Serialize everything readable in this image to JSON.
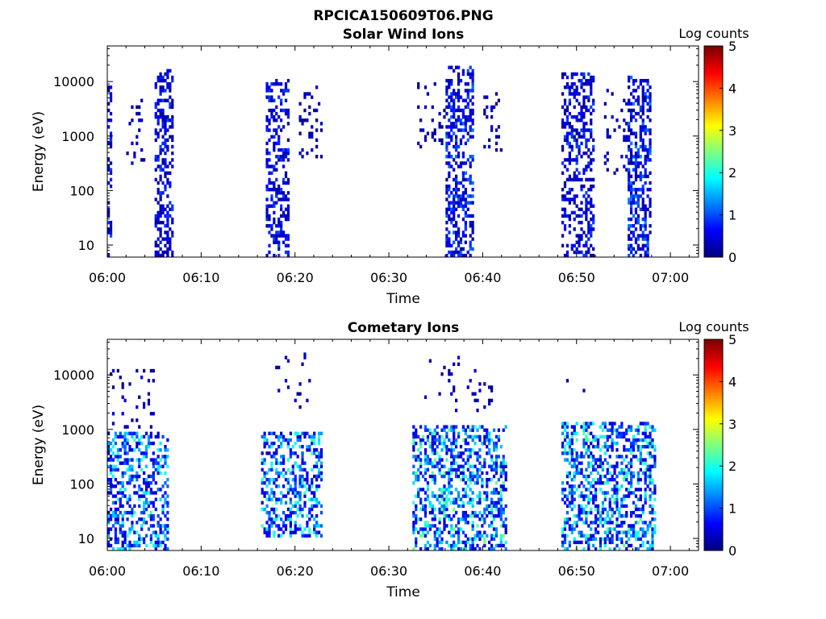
{
  "figure": {
    "title": "RPCICA150609T06.PNG"
  },
  "colors": {
    "colormap": [
      "#00007f",
      "#0000ff",
      "#007fff",
      "#00ffff",
      "#7fff7f",
      "#ffff00",
      "#ff7f00",
      "#ff0000",
      "#7f0000"
    ],
    "axes": "#000000",
    "background": "#ffffff"
  },
  "chart_data": [
    {
      "type": "heatmap",
      "title": "Solar Wind Ions",
      "xlabel": "Time",
      "ylabel": "Energy (eV)",
      "x_ticks": [
        "06:00",
        "06:10",
        "06:20",
        "06:30",
        "06:40",
        "06:50",
        "07:00"
      ],
      "xlim_minutes": [
        0,
        63
      ],
      "y_ticks": [
        "10",
        "100",
        "1000",
        "10000"
      ],
      "y_scale": "log",
      "ylim": [
        6,
        45000
      ],
      "colorbar": {
        "label": "Log counts",
        "range": [
          0,
          5
        ],
        "ticks": [
          "0",
          "1",
          "2",
          "3",
          "4",
          "5"
        ]
      },
      "bursts": [
        {
          "time_start": "06:00",
          "time_end": "06:00.5",
          "energy_min": 6,
          "energy_max": 10000,
          "max_log_counts": 1.0,
          "density": 0.35
        },
        {
          "time_start": "06:02",
          "time_end": "06:04",
          "energy_min": 300,
          "energy_max": 5000,
          "max_log_counts": 0.6,
          "density": 0.15
        },
        {
          "time_start": "06:05",
          "time_end": "06:07",
          "energy_min": 6,
          "energy_max": 16000,
          "max_log_counts": 1.0,
          "density": 0.45
        },
        {
          "time_start": "06:17",
          "time_end": "06:19.5",
          "energy_min": 6,
          "energy_max": 11000,
          "max_log_counts": 1.0,
          "density": 0.45
        },
        {
          "time_start": "06:20.5",
          "time_end": "06:23",
          "energy_min": 400,
          "energy_max": 8000,
          "max_log_counts": 0.5,
          "density": 0.15
        },
        {
          "time_start": "06:33",
          "time_end": "06:36",
          "energy_min": 600,
          "energy_max": 10000,
          "max_log_counts": 0.5,
          "density": 0.1
        },
        {
          "time_start": "06:36",
          "time_end": "06:39",
          "energy_min": 6,
          "energy_max": 20000,
          "max_log_counts": 1.2,
          "density": 0.45
        },
        {
          "time_start": "06:40",
          "time_end": "06:42",
          "energy_min": 500,
          "energy_max": 6000,
          "max_log_counts": 0.5,
          "density": 0.15
        },
        {
          "time_start": "06:48.5",
          "time_end": "06:52",
          "energy_min": 6,
          "energy_max": 15000,
          "max_log_counts": 1.0,
          "density": 0.4
        },
        {
          "time_start": "06:53",
          "time_end": "06:56",
          "energy_min": 200,
          "energy_max": 7000,
          "max_log_counts": 0.6,
          "density": 0.15
        },
        {
          "time_start": "06:55.5",
          "time_end": "06:58",
          "energy_min": 6,
          "energy_max": 12000,
          "max_log_counts": 1.3,
          "density": 0.45
        }
      ]
    },
    {
      "type": "heatmap",
      "title": "Cometary Ions",
      "xlabel": "Time",
      "ylabel": "Energy (eV)",
      "x_ticks": [
        "06:00",
        "06:10",
        "06:20",
        "06:30",
        "06:40",
        "06:50",
        "07:00"
      ],
      "xlim_minutes": [
        0,
        63
      ],
      "y_ticks": [
        "10",
        "100",
        "1000",
        "10000"
      ],
      "y_scale": "log",
      "ylim": [
        6,
        45000
      ],
      "colorbar": {
        "label": "Log counts",
        "range": [
          0,
          5
        ],
        "ticks": [
          "0",
          "1",
          "2",
          "3",
          "4",
          "5"
        ]
      },
      "bursts": [
        {
          "time_start": "06:00",
          "time_end": "06:06.5",
          "energy_min": 6,
          "energy_max": 900,
          "max_log_counts": 2.2,
          "density": 0.45
        },
        {
          "time_start": "06:00",
          "time_end": "06:05",
          "energy_min": 1000,
          "energy_max": 12000,
          "max_log_counts": 0.5,
          "density": 0.05
        },
        {
          "time_start": "06:16.5",
          "time_end": "06:23",
          "energy_min": 10,
          "energy_max": 900,
          "max_log_counts": 2.3,
          "density": 0.45
        },
        {
          "time_start": "06:18",
          "time_end": "06:22",
          "energy_min": 1000,
          "energy_max": 25000,
          "max_log_counts": 0.6,
          "density": 0.05
        },
        {
          "time_start": "06:32.5",
          "time_end": "06:42.5",
          "energy_min": 6,
          "energy_max": 1200,
          "max_log_counts": 2.5,
          "density": 0.45
        },
        {
          "time_start": "06:33",
          "time_end": "06:41",
          "energy_min": 1500,
          "energy_max": 22000,
          "max_log_counts": 0.5,
          "density": 0.05
        },
        {
          "time_start": "06:48.5",
          "time_end": "06:58.5",
          "energy_min": 6,
          "energy_max": 1400,
          "max_log_counts": 2.4,
          "density": 0.45
        },
        {
          "time_start": "06:49",
          "time_end": "06:51",
          "energy_min": 4000,
          "energy_max": 16000,
          "max_log_counts": 0.4,
          "density": 0.05
        }
      ]
    }
  ]
}
